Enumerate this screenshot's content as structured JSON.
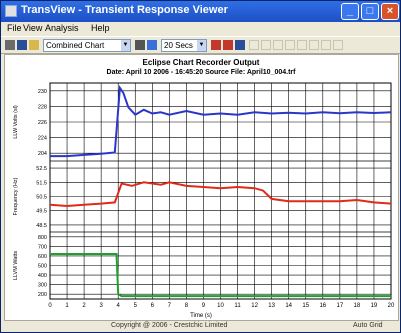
{
  "window": {
    "title": "TransView - Transient Response Viewer",
    "buttons": {
      "minimize": "_",
      "maximize": "□",
      "close": "×"
    }
  },
  "menu": {
    "items": [
      "File",
      "View",
      "Analysis",
      "Help"
    ]
  },
  "toolbar": {
    "chart_mode": "Combined Chart",
    "time_span": "20 Secs",
    "icons": [
      "print-icon",
      "save-icon",
      "open-icon",
      "grid-icon",
      "zoom-icon",
      "pan-icon",
      "marker-icon",
      "play-icon"
    ]
  },
  "chart": {
    "title": "Eclipse Chart Recorder Output",
    "subtitle": "Date:  April 10 2006  -  16:45:20     Source File:  April10_004.trf",
    "xlabel": "Time (s)",
    "top": {
      "ylabel": "LLW Volts (sl)",
      "ticks": [
        "230",
        "228",
        "226",
        "224",
        "204"
      ]
    },
    "mid": {
      "ylabel": "Frequency (Hz)",
      "ticks": [
        "52.5",
        "51.5",
        "50.5",
        "49.5",
        "48.5"
      ]
    },
    "bot": {
      "ylabel": "LLVM Watts",
      "ticks": [
        "800",
        "700",
        "600",
        "500",
        "400",
        "300",
        "200"
      ]
    },
    "xticks": [
      "0",
      "1",
      "2",
      "3",
      "4",
      "5",
      "6",
      "7",
      "8",
      "9",
      "10",
      "11",
      "12",
      "13",
      "14",
      "15",
      "16",
      "17",
      "18",
      "19",
      "20"
    ]
  },
  "chart_data": {
    "type": "line",
    "x_range": [
      0,
      20
    ],
    "series": [
      {
        "color": "#2b36c8",
        "x": [
          0,
          1,
          2,
          3,
          3.8,
          4.1,
          4.3,
          4.6,
          5,
          5.5,
          6,
          6.5,
          7,
          8,
          9,
          10,
          11,
          12,
          13,
          14,
          15,
          16,
          17,
          18,
          19,
          20
        ],
        "y": [
          204,
          204,
          204.5,
          205,
          205.5,
          232,
          230,
          224,
          221,
          223,
          221.5,
          222,
          221,
          222.5,
          221,
          221.5,
          221,
          222,
          221.5,
          221.8,
          221.5,
          222,
          221.6,
          222,
          221.7,
          222
        ]
      },
      {
        "color": "#e02a1a",
        "x": [
          0,
          1,
          2,
          3,
          3.8,
          4.2,
          4.8,
          5.5,
          6.5,
          7,
          8,
          9,
          10,
          11,
          12,
          12.5,
          13,
          14,
          15,
          16,
          17,
          18,
          19,
          20
        ],
        "y": [
          49.8,
          49.7,
          49.8,
          49.9,
          50,
          51.6,
          51.4,
          51.7,
          51.5,
          51.7,
          51.4,
          51.3,
          51.2,
          51.3,
          51.2,
          51,
          50.3,
          50.1,
          50.1,
          50.1,
          50.1,
          50.2,
          50,
          49.9
        ]
      },
      {
        "color": "#1fa02a",
        "x": [
          0,
          1,
          2,
          3,
          3.9,
          4.0,
          4.2,
          20
        ],
        "y": [
          620,
          620,
          620,
          620,
          620,
          200,
          180,
          180
        ]
      }
    ]
  },
  "status": {
    "copyright": "Copyright @ 2006 - Crestchic Limited",
    "mode": "Auto Grid"
  }
}
